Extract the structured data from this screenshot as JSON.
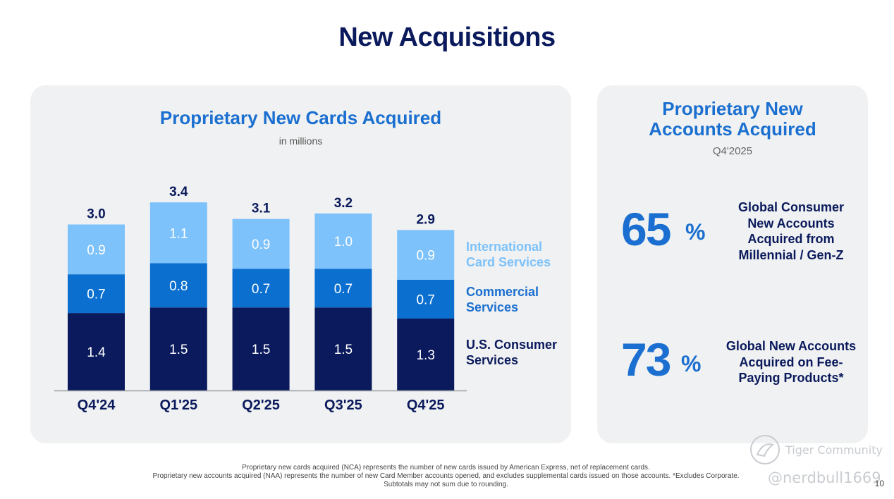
{
  "page": {
    "title": "New Acquisitions",
    "page_number": "10"
  },
  "chart_data": {
    "type": "bar",
    "stacked": true,
    "title": "Proprietary New Cards Acquired",
    "subtitle": "in millions",
    "categories": [
      "Q4'24",
      "Q1'25",
      "Q2'25",
      "Q3'25",
      "Q4'25"
    ],
    "totals": [
      3.0,
      3.4,
      3.1,
      3.2,
      2.9
    ],
    "total_labels": [
      "3.0",
      "3.4",
      "3.1",
      "3.2",
      "2.9"
    ],
    "series": [
      {
        "name": "U.S. Consumer Services",
        "legend_label": "U.S. Consumer\nServices",
        "values": [
          1.4,
          1.5,
          1.5,
          1.5,
          1.3
        ],
        "labels": [
          "1.4",
          "1.5",
          "1.5",
          "1.5",
          "1.3"
        ],
        "color": "#0a1a5c",
        "legend_color": "#0a1a5c"
      },
      {
        "name": "Commercial Services",
        "legend_label": "Commercial\nServices",
        "values": [
          0.7,
          0.8,
          0.7,
          0.7,
          0.7
        ],
        "labels": [
          "0.7",
          "0.8",
          "0.7",
          "0.7",
          "0.7"
        ],
        "color": "#0b6fd0",
        "legend_color": "#1a6fd0"
      },
      {
        "name": "International Card Services",
        "legend_label": "International\nCard Services",
        "values": [
          0.9,
          1.1,
          0.9,
          1.0,
          0.9
        ],
        "labels": [
          "0.9",
          "1.1",
          "0.9",
          "1.0",
          "0.9"
        ],
        "color": "#7dc2fb",
        "legend_color": "#7dc2fb"
      }
    ],
    "legend_position": "right",
    "grid": false
  },
  "accounts_panel": {
    "title": "Proprietary New\nAccounts Acquired",
    "subtitle": "Q4'2025",
    "stats": [
      {
        "value": "65",
        "unit": "%",
        "description": "Global Consumer\nNew Accounts\nAcquired from\nMillennial / Gen-Z"
      },
      {
        "value": "73",
        "unit": "%",
        "description": "Global New Accounts\nAcquired on Fee-\nPaying Products*"
      }
    ]
  },
  "footnotes": [
    "Proprietary new cards acquired (NCA) represents the number of new cards issued by American Express, net of replacement cards.",
    "Proprietary new accounts acquired (NAA) represents the number of new Card Member accounts opened, and excludes supplemental cards issued on those accounts. *Excludes Corporate.",
    "Subtotals may not sum due to rounding."
  ],
  "watermark": {
    "brand": "Tiger Community",
    "handle": "@nerdbull1669"
  },
  "colors": {
    "title_navy": "#0a1a5c",
    "accent_blue": "#1a6fd0",
    "panel_bg": "#f0f1f2"
  }
}
